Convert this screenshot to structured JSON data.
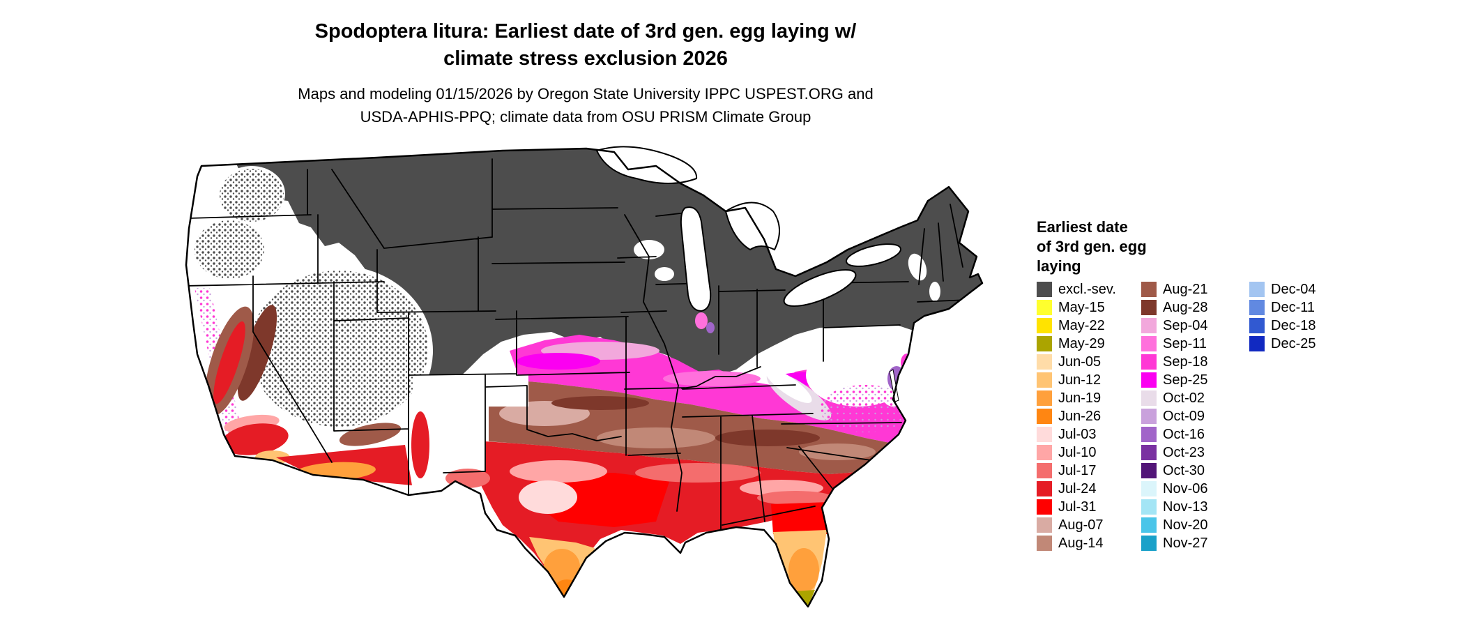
{
  "title_lines": [
    "Spodoptera litura: Earliest date of 3rd gen. egg laying w/",
    "climate stress exclusion 2026"
  ],
  "subtitle_lines": [
    "Maps and modeling 01/15/2026 by Oregon State University IPPC USPEST.ORG and",
    "USDA-APHIS-PPQ; climate data from OSU PRISM Climate Group"
  ],
  "legend": {
    "title_lines": [
      "Earliest date",
      "of 3rd gen. egg",
      "laying"
    ],
    "columns": [
      [
        {
          "label": "excl.-sev.",
          "color": "#4D4D4D"
        },
        {
          "label": "May-15",
          "color": "#FFFF2E"
        },
        {
          "label": "May-22",
          "color": "#FFE300"
        },
        {
          "label": "May-29",
          "color": "#ABA400"
        },
        {
          "label": "Jun-05",
          "color": "#FFDCA8"
        },
        {
          "label": "Jun-12",
          "color": "#FFC473"
        },
        {
          "label": "Jun-19",
          "color": "#FFA03C"
        },
        {
          "label": "Jun-26",
          "color": "#FF8612"
        },
        {
          "label": "Jul-03",
          "color": "#FFDBDB"
        },
        {
          "label": "Jul-10",
          "color": "#FFA6A6"
        },
        {
          "label": "Jul-17",
          "color": "#F46D6D"
        },
        {
          "label": "Jul-24",
          "color": "#E51C25"
        },
        {
          "label": "Jul-31",
          "color": "#FF0000"
        },
        {
          "label": "Aug-07",
          "color": "#D9ABA3"
        },
        {
          "label": "Aug-14",
          "color": "#C18877"
        }
      ],
      [
        {
          "label": "Aug-21",
          "color": "#9F5A49"
        },
        {
          "label": "Aug-28",
          "color": "#7E382B"
        },
        {
          "label": "Sep-04",
          "color": "#F2A8DC"
        },
        {
          "label": "Sep-11",
          "color": "#FF70DC"
        },
        {
          "label": "Sep-18",
          "color": "#FF38D5"
        },
        {
          "label": "Sep-25",
          "color": "#FB00F1"
        },
        {
          "label": "Oct-02",
          "color": "#E9DCE9"
        },
        {
          "label": "Oct-09",
          "color": "#C9A1DC"
        },
        {
          "label": "Oct-16",
          "color": "#A165C9"
        },
        {
          "label": "Oct-23",
          "color": "#7A31A1"
        },
        {
          "label": "Oct-30",
          "color": "#521578"
        },
        {
          "label": "Nov-06",
          "color": "#DBF5FB"
        },
        {
          "label": "Nov-13",
          "color": "#A3E5F5"
        },
        {
          "label": "Nov-20",
          "color": "#4AC5E9"
        },
        {
          "label": "Nov-27",
          "color": "#1AA1C9"
        }
      ],
      [
        {
          "label": "Dec-04",
          "color": "#A3C5F1"
        },
        {
          "label": "Dec-11",
          "color": "#6189E1"
        },
        {
          "label": "Dec-18",
          "color": "#3159D1"
        },
        {
          "label": "Dec-25",
          "color": "#1129C1"
        }
      ]
    ]
  }
}
